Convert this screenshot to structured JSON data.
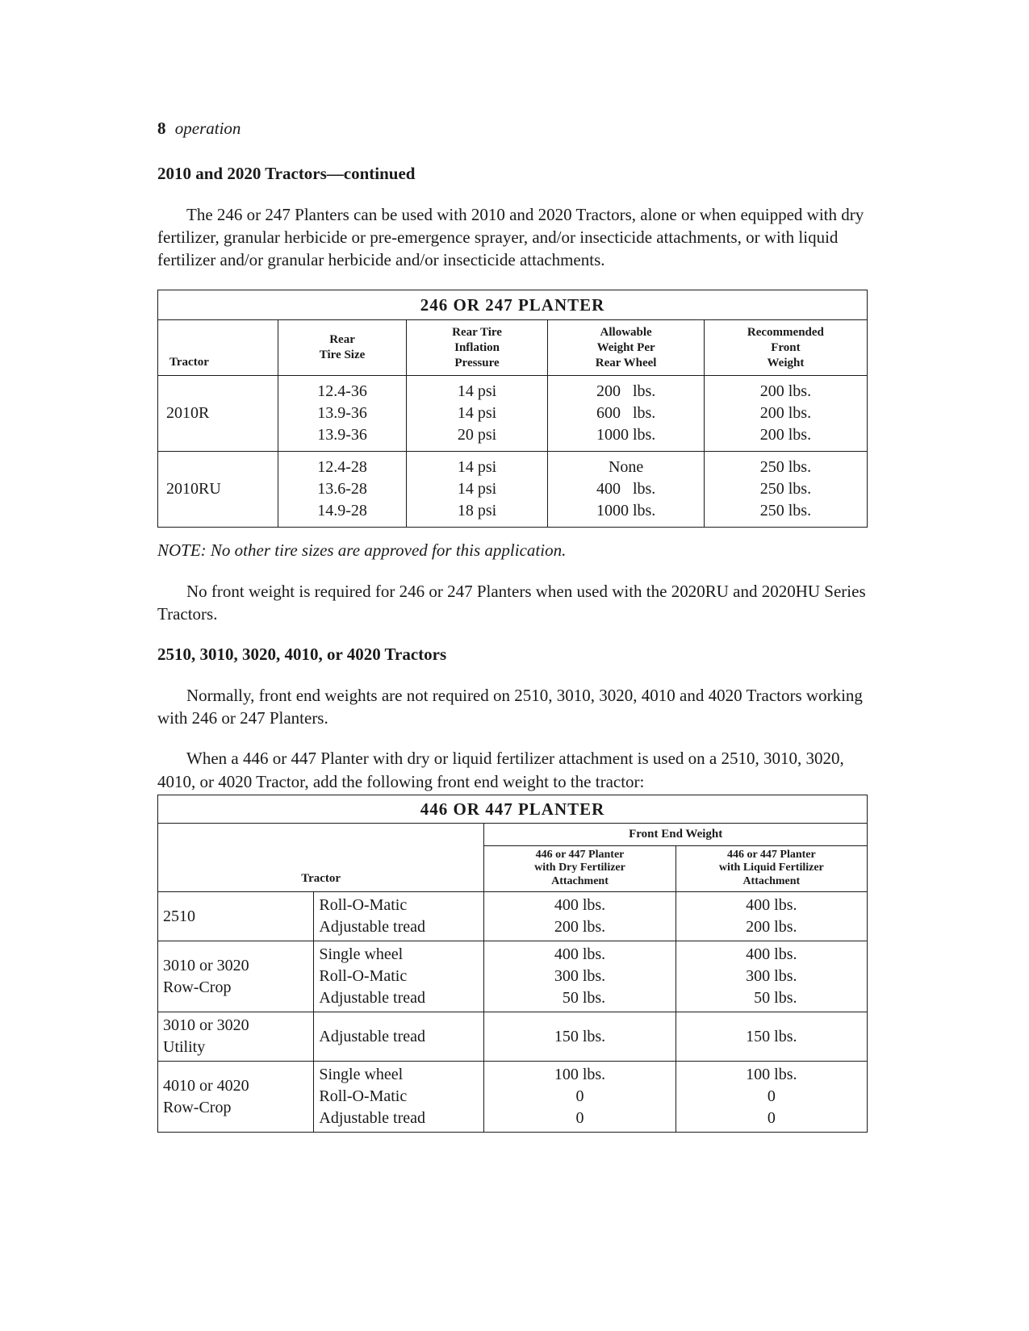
{
  "page": {
    "number": "8",
    "section": "operation"
  },
  "heading1": "2010 and 2020 Tractors—continued",
  "para1": "The 246 or 247 Planters can be used with 2010 and 2020 Tractors, alone or when equipped with dry fertilizer, granular herbicide or pre-emergence sprayer, and/or insecticide attachments, or with liquid fertilizer and/or granular herbicide and/or insecticide attachments.",
  "table1": {
    "title": "246 OR 247 PLANTER",
    "headers": {
      "c1": "Tractor",
      "c2": "Rear\nTire Size",
      "c3": "Rear Tire\nInflation\nPressure",
      "c4": "Allowable\nWeight Per\nRear Wheel",
      "c5": "Recommended\nFront\nWeight"
    },
    "rows": [
      {
        "tractor": "2010R",
        "tire": [
          "12.4-36",
          "13.9-36",
          "13.9-36"
        ],
        "psi": [
          "14 psi",
          "14 psi",
          "20 psi"
        ],
        "allow": [
          "200   lbs.",
          "600   lbs.",
          "1000 lbs."
        ],
        "front": [
          "200 lbs.",
          "200 lbs.",
          "200 lbs."
        ]
      },
      {
        "tractor": "2010RU",
        "tire": [
          "12.4-28",
          "13.6-28",
          "14.9-28"
        ],
        "psi": [
          "14 psi",
          "14 psi",
          "18 psi"
        ],
        "allow": [
          "None",
          "400   lbs.",
          "1000 lbs."
        ],
        "front": [
          "250 lbs.",
          "250 lbs.",
          "250 lbs."
        ]
      }
    ]
  },
  "note1": "NOTE: No other tire sizes are approved for this application.",
  "para2": "No front weight is required for 246 or 247 Planters when used with the 2020RU and 2020HU Series Tractors.",
  "heading2": "2510, 3010, 3020, 4010, or 4020 Tractors",
  "para3": "Normally, front end weights are not required on 2510, 3010, 3020, 4010 and 4020 Tractors working with 246 or 247 Planters.",
  "para4": "When a 446 or 447 Planter with dry or liquid fertilizer attachment is used on a 2510, 3010, 3020, 4010, or 4020 Tractor, add the following front end weight to the tractor:",
  "table2": {
    "title": "446 OR 447 PLANTER",
    "tractor_label": "Tractor",
    "front_end_label": "Front End Weight",
    "sub_dry": "446 or 447 Planter\nwith Dry Fertilizer\nAttachment",
    "sub_liq": "446 or 447 Planter\nwith Liquid Fertilizer\nAttachment",
    "rows": [
      {
        "model": "2510",
        "features": [
          "Roll-O-Matic",
          "Adjustable tread"
        ],
        "dry": [
          "400 lbs.",
          "200 lbs."
        ],
        "liq": [
          "400 lbs.",
          "200 lbs."
        ]
      },
      {
        "model": "3010 or 3020\nRow-Crop",
        "features": [
          "Single wheel",
          "Roll-O-Matic",
          "Adjustable tread"
        ],
        "dry": [
          "400 lbs.",
          "300 lbs.",
          "  50 lbs."
        ],
        "liq": [
          "400 lbs.",
          "300 lbs.",
          "  50 lbs."
        ]
      },
      {
        "model": "3010 or 3020\nUtility",
        "features": [
          "Adjustable tread"
        ],
        "dry": [
          "150 lbs."
        ],
        "liq": [
          "150 lbs."
        ]
      },
      {
        "model": "4010 or 4020\nRow-Crop",
        "features": [
          "Single wheel",
          "Roll-O-Matic",
          "Adjustable tread"
        ],
        "dry": [
          "100 lbs.",
          "0",
          "0"
        ],
        "liq": [
          "100 lbs.",
          "0",
          "0"
        ]
      }
    ]
  },
  "colors": {
    "text": "#1a1a1a",
    "bg": "#ffffff",
    "border": "#1a1a1a"
  }
}
